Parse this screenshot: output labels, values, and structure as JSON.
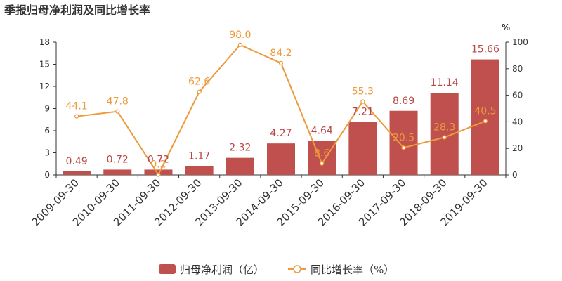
{
  "chart_data": {
    "type": "bar",
    "title": "季报归母净利润及同比增长率",
    "categories": [
      "2009-09-30",
      "2010-09-30",
      "2011-09-30",
      "2012-09-30",
      "2013-09-30",
      "2014-09-30",
      "2015-09-30",
      "2016-09-30",
      "2017-09-30",
      "2018-09-30",
      "2019-09-30"
    ],
    "series": [
      {
        "name": "归母净利润（亿）",
        "type": "bar",
        "axis": "left",
        "color": "#c0504d",
        "values": [
          0.49,
          0.72,
          0.72,
          1.17,
          2.32,
          4.27,
          4.64,
          7.21,
          8.69,
          11.14,
          15.66
        ],
        "labels": [
          "0.49",
          "0.72",
          "0.72",
          "1.17",
          "2.32",
          "4.27",
          "4.64",
          "7.21",
          "8.69",
          "11.14",
          "15.66"
        ]
      },
      {
        "name": "同比增长率（%）",
        "type": "line",
        "axis": "right",
        "color": "#ec9a3c",
        "values": [
          44.1,
          47.8,
          0.2,
          62.6,
          98.0,
          84.2,
          8.6,
          55.3,
          20.5,
          28.3,
          40.5
        ],
        "labels": [
          "44.1",
          "47.8",
          "0.2",
          "62.6",
          "98.0",
          "84.2",
          "8.6",
          "55.3",
          "20.5",
          "28.3",
          "40.5"
        ]
      }
    ],
    "y_left": {
      "ticks": [
        0,
        3,
        6,
        9,
        12,
        15,
        18
      ],
      "ylim": [
        0,
        18
      ]
    },
    "y_right": {
      "unit": "%",
      "ticks": [
        0,
        20,
        40,
        60,
        80,
        100
      ],
      "ylim": [
        0,
        100
      ]
    },
    "legend_position": "bottom-center",
    "grid": false
  }
}
